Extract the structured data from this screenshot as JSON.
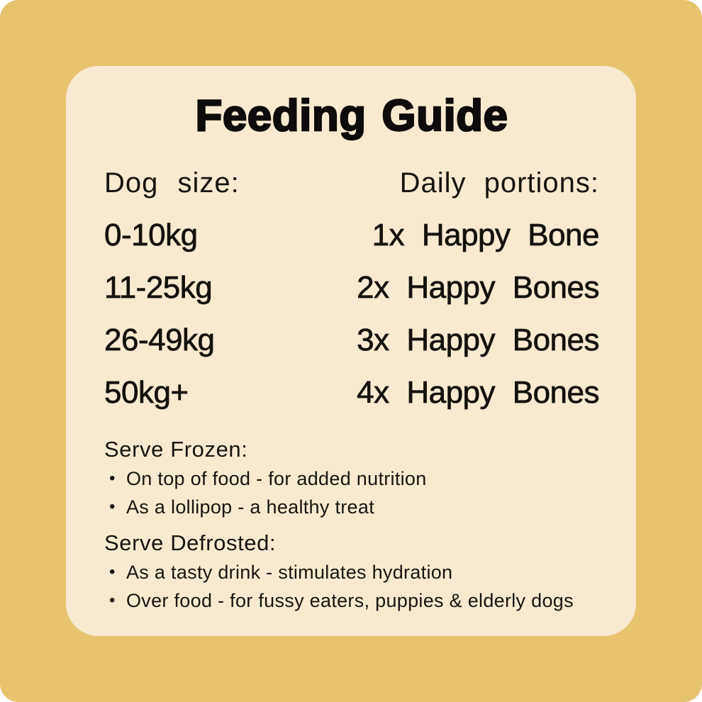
{
  "title": "Feeding Guide",
  "colors": {
    "panel_background": "#E8C36E",
    "card_background": "#F7EAD1",
    "text": "#14120F"
  },
  "table": {
    "col1_header": "Dog size:",
    "col2_header": "Daily portions:",
    "rows": [
      {
        "size": "0-10kg",
        "portion": "1x Happy Bone"
      },
      {
        "size": "11-25kg",
        "portion": "2x Happy Bones"
      },
      {
        "size": "26-49kg",
        "portion": "3x Happy Bones"
      },
      {
        "size": "50kg+",
        "portion": "4x Happy Bones"
      }
    ]
  },
  "sections": [
    {
      "heading": "Serve Frozen:",
      "bullets": [
        "On top of food - for added nutrition",
        "As a lollipop - a healthy treat"
      ]
    },
    {
      "heading": "Serve Defrosted:",
      "bullets": [
        "As a tasty drink - stimulates hydration",
        "Over food - for fussy eaters, puppies & elderly dogs"
      ]
    }
  ]
}
